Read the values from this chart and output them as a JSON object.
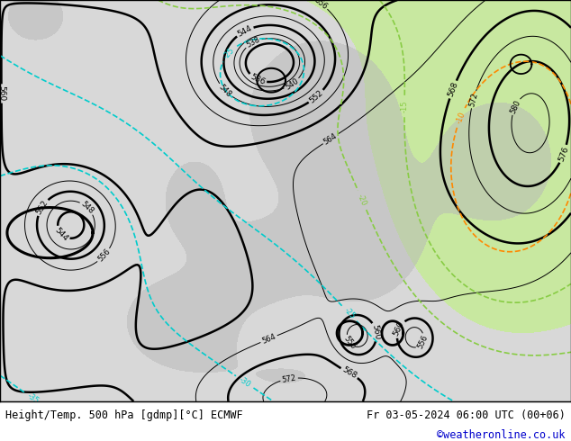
{
  "title_left": "Height/Temp. 500 hPa [gdmp][°C] ECMWF",
  "title_right": "Fr 03-05-2024 06:00 UTC (00+06)",
  "credit": "©weatheronline.co.uk",
  "bg_grey": "#d8d8d8",
  "bg_green": "#c8e8a0",
  "land_grey": "#b8b8b8",
  "contour_black": "#000000",
  "temp_cyan": "#00cccc",
  "temp_blue": "#0088ff",
  "temp_green": "#88cc44",
  "temp_orange": "#ff8800",
  "credit_color": "#0000cc",
  "footer_bg": "#ffffff",
  "text_color": "#000000"
}
